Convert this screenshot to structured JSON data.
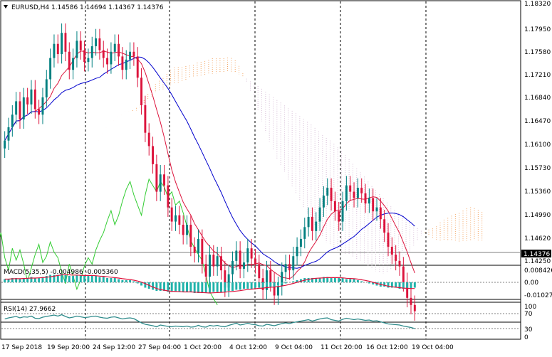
{
  "colors": {
    "background": "#ffffff",
    "grid": "#000000",
    "axis_text": "#000000",
    "bull_candle": "#008080",
    "bear_candle": "#dc143c",
    "tenkan": "#dc143c",
    "kijun": "#0000cd",
    "chikou": "#32cd32",
    "cloud_bull": "#f4a460",
    "cloud_bear": "#d8bfd8",
    "macd_hist": "#20b2aa",
    "macd_signal": "#dc143c",
    "rsi_line": "#2e8b8b",
    "price_tag_bg": "#000000",
    "price_tag_text": "#ffffff"
  },
  "header": {
    "symbol_icon": "triangle-down-icon",
    "title": "EURUSD,H4  1.14586 1.14694 1.14367 1.14376"
  },
  "price_axis": {
    "labels": [
      "1.18320",
      "1.17950",
      "1.17580",
      "1.17210",
      "1.16840",
      "1.16470",
      "1.16100",
      "1.15730",
      "1.15360",
      "1.14990",
      "1.14620",
      "1.14250"
    ],
    "current_price": "1.14376"
  },
  "time_axis": {
    "labels": [
      "17 Sep 2018",
      "19 Sep 20:00",
      "24 Sep 12:00",
      "27 Sep 04:00",
      "1 Oct 20:00",
      "4 Oct 12:00",
      "9 Oct 04:00",
      "11 Oct 20:00",
      "16 Oct 12:00",
      "19 Oct 04:00"
    ]
  },
  "macd_panel": {
    "label": "MACD(5,35,5) -0.004986 -0.005360",
    "axis_labels": [
      "0.008426",
      "0.00",
      "-0.010273"
    ]
  },
  "rsi_panel": {
    "label": "RSI(14) 27.9662",
    "axis_labels": [
      "100",
      "70",
      "30",
      "0"
    ]
  },
  "chart_data": {
    "type": "candlestick",
    "symbol": "EURUSD",
    "timeframe": "H4",
    "ylim": [
      1.1425,
      1.1832
    ],
    "last_ohlc": {
      "open": 1.14586,
      "high": 1.14694,
      "low": 1.14367,
      "close": 1.14376
    },
    "close_series": [
      1.1655,
      1.1672,
      1.1688,
      1.1705,
      1.1682,
      1.171,
      1.1701,
      1.172,
      1.1695,
      1.1688,
      1.171,
      1.1733,
      1.176,
      1.1778,
      1.1765,
      1.1792,
      1.1768,
      1.1745,
      1.176,
      1.1782,
      1.177,
      1.1755,
      1.176,
      1.1775,
      1.1785,
      1.177,
      1.176,
      1.1752,
      1.1768,
      1.1778,
      1.1762,
      1.1745,
      1.1758,
      1.1768,
      1.1762,
      1.1735,
      1.17,
      1.1665,
      1.1648,
      1.1625,
      1.159,
      1.1612,
      1.1598,
      1.157,
      1.1552,
      1.156,
      1.1548,
      1.1535,
      1.1548,
      1.152,
      1.1512,
      1.153,
      1.1498,
      1.1482,
      1.151,
      1.1495,
      1.1508,
      1.149,
      1.1468,
      1.1485,
      1.1502,
      1.1515,
      1.1492,
      1.15,
      1.1518,
      1.1505,
      1.1498,
      1.148,
      1.1465,
      1.149,
      1.1475,
      1.1458,
      1.147,
      1.1488,
      1.1498,
      1.149,
      1.1508,
      1.152,
      1.153,
      1.1545,
      1.1558,
      1.154,
      1.1552,
      1.157,
      1.1585,
      1.1595,
      1.1578,
      1.1565,
      1.1552,
      1.1578,
      1.1598,
      1.159,
      1.1582,
      1.1595,
      1.1588,
      1.1575,
      1.1582,
      1.1565,
      1.157,
      1.1555,
      1.1538,
      1.152,
      1.151,
      1.1502,
      1.1495,
      1.1475,
      1.1455,
      1.1446,
      1.1438
    ],
    "grid_x_frac": [
      0.155,
      0.31,
      0.465,
      0.62,
      0.775
    ],
    "macd_hist": [
      0.003,
      0.003,
      0.004,
      0.004,
      0.003,
      0.004,
      0.004,
      0.005,
      0.004,
      0.004,
      0.005,
      0.006,
      0.007,
      0.007,
      0.007,
      0.008,
      0.007,
      0.006,
      0.006,
      0.007,
      0.007,
      0.006,
      0.006,
      0.006,
      0.006,
      0.005,
      0.005,
      0.004,
      0.004,
      0.004,
      0.003,
      0.002,
      0.002,
      0.002,
      0.001,
      -0.001,
      -0.003,
      -0.005,
      -0.006,
      -0.007,
      -0.008,
      -0.008,
      -0.008,
      -0.009,
      -0.009,
      -0.009,
      -0.009,
      -0.009,
      -0.009,
      -0.009,
      -0.01,
      -0.01,
      -0.01,
      -0.01,
      -0.01,
      -0.009,
      -0.009,
      -0.009,
      -0.009,
      -0.008,
      -0.008,
      -0.007,
      -0.007,
      -0.006,
      -0.006,
      -0.006,
      -0.005,
      -0.005,
      -0.005,
      -0.004,
      -0.004,
      -0.004,
      -0.003,
      -0.002,
      -0.001,
      0.0,
      0.001,
      0.002,
      0.003,
      0.004,
      0.004,
      0.004,
      0.004,
      0.004,
      0.005,
      0.005,
      0.004,
      0.004,
      0.004,
      0.004,
      0.003,
      0.003,
      0.003,
      0.002,
      0.001,
      0.0,
      -0.001,
      -0.002,
      -0.003,
      -0.004,
      -0.004,
      -0.005,
      -0.005,
      -0.005,
      -0.006,
      -0.006,
      -0.006,
      -0.006,
      -0.005
    ],
    "rsi": [
      55,
      58,
      60,
      62,
      58,
      61,
      60,
      63,
      57,
      56,
      60,
      62,
      64,
      66,
      63,
      67,
      62,
      58,
      60,
      63,
      61,
      59,
      60,
      62,
      63,
      60,
      58,
      57,
      60,
      61,
      58,
      55,
      57,
      58,
      56,
      50,
      44,
      40,
      38,
      36,
      33,
      38,
      36,
      34,
      33,
      35,
      34,
      33,
      35,
      32,
      33,
      37,
      33,
      32,
      37,
      35,
      37,
      34,
      33,
      37,
      40,
      43,
      38,
      40,
      43,
      40,
      39,
      36,
      35,
      40,
      38,
      36,
      39,
      42,
      44,
      42,
      45,
      47,
      49,
      51,
      53,
      49,
      52,
      55,
      57,
      58,
      53,
      51,
      49,
      54,
      57,
      55,
      53,
      55,
      53,
      51,
      52,
      49,
      50,
      47,
      44,
      41,
      40,
      39,
      38,
      35,
      33,
      31,
      28
    ]
  }
}
